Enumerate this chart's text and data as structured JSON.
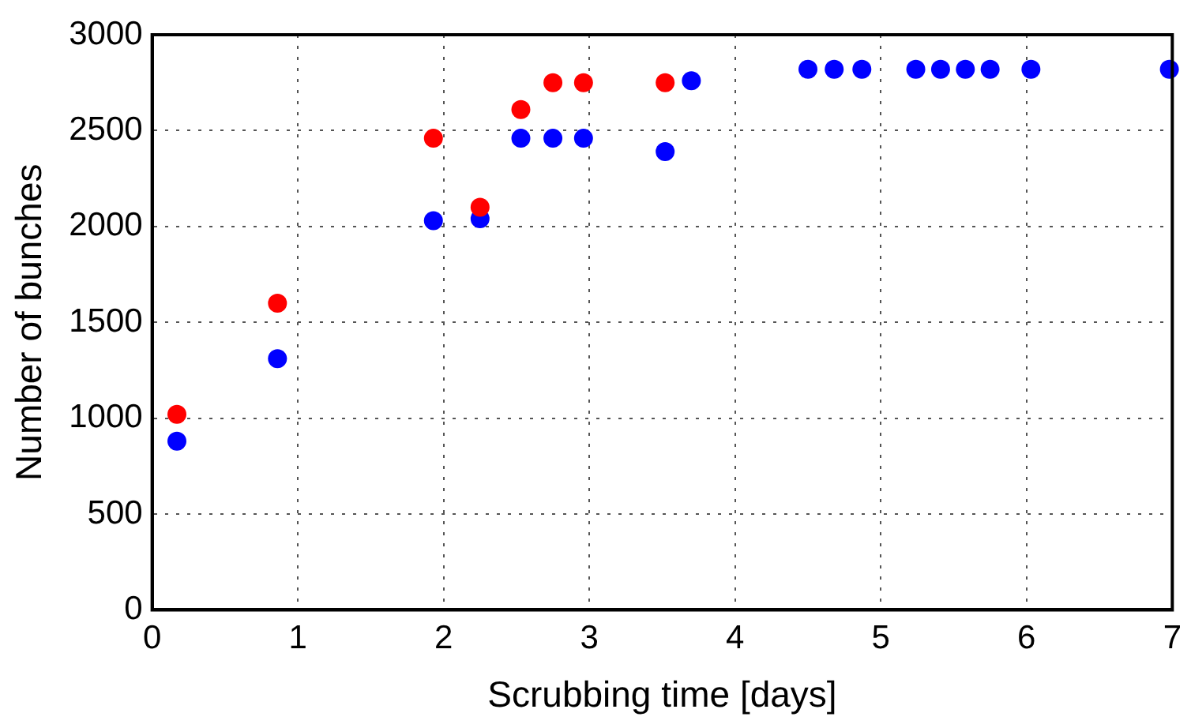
{
  "chart_data": {
    "type": "scatter",
    "xlabel": "Scrubbing time [days]",
    "ylabel": "Number of bunches",
    "xlim": [
      0,
      7
    ],
    "xticks": [
      0,
      1,
      2,
      3,
      4,
      5,
      6,
      7
    ],
    "ylim": [
      0,
      3000
    ],
    "yticks": [
      0,
      500,
      1000,
      1500,
      2000,
      2500,
      3000
    ],
    "grid": true,
    "marker": "circle",
    "series": [
      {
        "color": "#ff0000",
        "x": [
          0.17,
          0.86,
          1.93,
          2.25,
          2.53,
          2.75,
          2.96,
          3.52
        ],
        "values": [
          1020,
          1600,
          2460,
          2100,
          2610,
          2750,
          2750,
          2750
        ]
      },
      {
        "color": "#0000ff",
        "x": [
          0.17,
          0.86,
          1.93,
          2.25,
          2.53,
          2.75,
          2.96,
          3.52,
          3.7,
          4.5,
          4.68,
          4.87,
          5.24,
          5.41,
          5.58,
          5.75,
          6.03,
          6.98
        ],
        "values": [
          880,
          1310,
          2030,
          2040,
          2460,
          2460,
          2460,
          2390,
          2760,
          2820,
          2820,
          2820,
          2820,
          2820,
          2820,
          2820,
          2820,
          2820
        ]
      }
    ]
  }
}
